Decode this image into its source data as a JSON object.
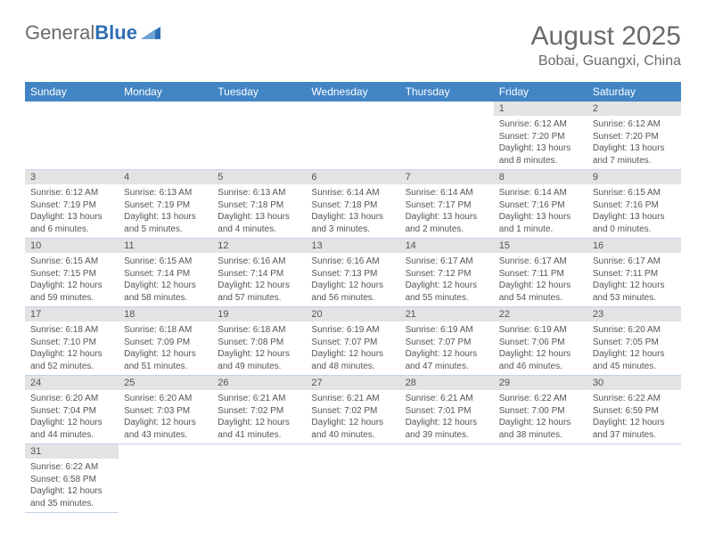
{
  "logo": {
    "part1": "General",
    "part2": "Blue"
  },
  "title": "August 2025",
  "location": "Bobai, Guangxi, China",
  "colors": {
    "header_bg": "#4285c5",
    "header_text": "#ffffff",
    "daynum_bg": "#e3e3e3",
    "text": "#555555",
    "row_border": "#c3d4e6",
    "logo_gray": "#6b6b6b",
    "logo_blue": "#2d6fb5"
  },
  "day_labels": [
    "Sunday",
    "Monday",
    "Tuesday",
    "Wednesday",
    "Thursday",
    "Friday",
    "Saturday"
  ],
  "weeks": [
    [
      {
        "n": "",
        "lines": []
      },
      {
        "n": "",
        "lines": []
      },
      {
        "n": "",
        "lines": []
      },
      {
        "n": "",
        "lines": []
      },
      {
        "n": "",
        "lines": []
      },
      {
        "n": "1",
        "lines": [
          "Sunrise: 6:12 AM",
          "Sunset: 7:20 PM",
          "Daylight: 13 hours",
          "and 8 minutes."
        ]
      },
      {
        "n": "2",
        "lines": [
          "Sunrise: 6:12 AM",
          "Sunset: 7:20 PM",
          "Daylight: 13 hours",
          "and 7 minutes."
        ]
      }
    ],
    [
      {
        "n": "3",
        "lines": [
          "Sunrise: 6:12 AM",
          "Sunset: 7:19 PM",
          "Daylight: 13 hours",
          "and 6 minutes."
        ]
      },
      {
        "n": "4",
        "lines": [
          "Sunrise: 6:13 AM",
          "Sunset: 7:19 PM",
          "Daylight: 13 hours",
          "and 5 minutes."
        ]
      },
      {
        "n": "5",
        "lines": [
          "Sunrise: 6:13 AM",
          "Sunset: 7:18 PM",
          "Daylight: 13 hours",
          "and 4 minutes."
        ]
      },
      {
        "n": "6",
        "lines": [
          "Sunrise: 6:14 AM",
          "Sunset: 7:18 PM",
          "Daylight: 13 hours",
          "and 3 minutes."
        ]
      },
      {
        "n": "7",
        "lines": [
          "Sunrise: 6:14 AM",
          "Sunset: 7:17 PM",
          "Daylight: 13 hours",
          "and 2 minutes."
        ]
      },
      {
        "n": "8",
        "lines": [
          "Sunrise: 6:14 AM",
          "Sunset: 7:16 PM",
          "Daylight: 13 hours",
          "and 1 minute."
        ]
      },
      {
        "n": "9",
        "lines": [
          "Sunrise: 6:15 AM",
          "Sunset: 7:16 PM",
          "Daylight: 13 hours",
          "and 0 minutes."
        ]
      }
    ],
    [
      {
        "n": "10",
        "lines": [
          "Sunrise: 6:15 AM",
          "Sunset: 7:15 PM",
          "Daylight: 12 hours",
          "and 59 minutes."
        ]
      },
      {
        "n": "11",
        "lines": [
          "Sunrise: 6:15 AM",
          "Sunset: 7:14 PM",
          "Daylight: 12 hours",
          "and 58 minutes."
        ]
      },
      {
        "n": "12",
        "lines": [
          "Sunrise: 6:16 AM",
          "Sunset: 7:14 PM",
          "Daylight: 12 hours",
          "and 57 minutes."
        ]
      },
      {
        "n": "13",
        "lines": [
          "Sunrise: 6:16 AM",
          "Sunset: 7:13 PM",
          "Daylight: 12 hours",
          "and 56 minutes."
        ]
      },
      {
        "n": "14",
        "lines": [
          "Sunrise: 6:17 AM",
          "Sunset: 7:12 PM",
          "Daylight: 12 hours",
          "and 55 minutes."
        ]
      },
      {
        "n": "15",
        "lines": [
          "Sunrise: 6:17 AM",
          "Sunset: 7:11 PM",
          "Daylight: 12 hours",
          "and 54 minutes."
        ]
      },
      {
        "n": "16",
        "lines": [
          "Sunrise: 6:17 AM",
          "Sunset: 7:11 PM",
          "Daylight: 12 hours",
          "and 53 minutes."
        ]
      }
    ],
    [
      {
        "n": "17",
        "lines": [
          "Sunrise: 6:18 AM",
          "Sunset: 7:10 PM",
          "Daylight: 12 hours",
          "and 52 minutes."
        ]
      },
      {
        "n": "18",
        "lines": [
          "Sunrise: 6:18 AM",
          "Sunset: 7:09 PM",
          "Daylight: 12 hours",
          "and 51 minutes."
        ]
      },
      {
        "n": "19",
        "lines": [
          "Sunrise: 6:18 AM",
          "Sunset: 7:08 PM",
          "Daylight: 12 hours",
          "and 49 minutes."
        ]
      },
      {
        "n": "20",
        "lines": [
          "Sunrise: 6:19 AM",
          "Sunset: 7:07 PM",
          "Daylight: 12 hours",
          "and 48 minutes."
        ]
      },
      {
        "n": "21",
        "lines": [
          "Sunrise: 6:19 AM",
          "Sunset: 7:07 PM",
          "Daylight: 12 hours",
          "and 47 minutes."
        ]
      },
      {
        "n": "22",
        "lines": [
          "Sunrise: 6:19 AM",
          "Sunset: 7:06 PM",
          "Daylight: 12 hours",
          "and 46 minutes."
        ]
      },
      {
        "n": "23",
        "lines": [
          "Sunrise: 6:20 AM",
          "Sunset: 7:05 PM",
          "Daylight: 12 hours",
          "and 45 minutes."
        ]
      }
    ],
    [
      {
        "n": "24",
        "lines": [
          "Sunrise: 6:20 AM",
          "Sunset: 7:04 PM",
          "Daylight: 12 hours",
          "and 44 minutes."
        ]
      },
      {
        "n": "25",
        "lines": [
          "Sunrise: 6:20 AM",
          "Sunset: 7:03 PM",
          "Daylight: 12 hours",
          "and 43 minutes."
        ]
      },
      {
        "n": "26",
        "lines": [
          "Sunrise: 6:21 AM",
          "Sunset: 7:02 PM",
          "Daylight: 12 hours",
          "and 41 minutes."
        ]
      },
      {
        "n": "27",
        "lines": [
          "Sunrise: 6:21 AM",
          "Sunset: 7:02 PM",
          "Daylight: 12 hours",
          "and 40 minutes."
        ]
      },
      {
        "n": "28",
        "lines": [
          "Sunrise: 6:21 AM",
          "Sunset: 7:01 PM",
          "Daylight: 12 hours",
          "and 39 minutes."
        ]
      },
      {
        "n": "29",
        "lines": [
          "Sunrise: 6:22 AM",
          "Sunset: 7:00 PM",
          "Daylight: 12 hours",
          "and 38 minutes."
        ]
      },
      {
        "n": "30",
        "lines": [
          "Sunrise: 6:22 AM",
          "Sunset: 6:59 PM",
          "Daylight: 12 hours",
          "and 37 minutes."
        ]
      }
    ],
    [
      {
        "n": "31",
        "lines": [
          "Sunrise: 6:22 AM",
          "Sunset: 6:58 PM",
          "Daylight: 12 hours",
          "and 35 minutes."
        ]
      },
      {
        "n": "",
        "lines": []
      },
      {
        "n": "",
        "lines": []
      },
      {
        "n": "",
        "lines": []
      },
      {
        "n": "",
        "lines": []
      },
      {
        "n": "",
        "lines": []
      },
      {
        "n": "",
        "lines": []
      }
    ]
  ]
}
